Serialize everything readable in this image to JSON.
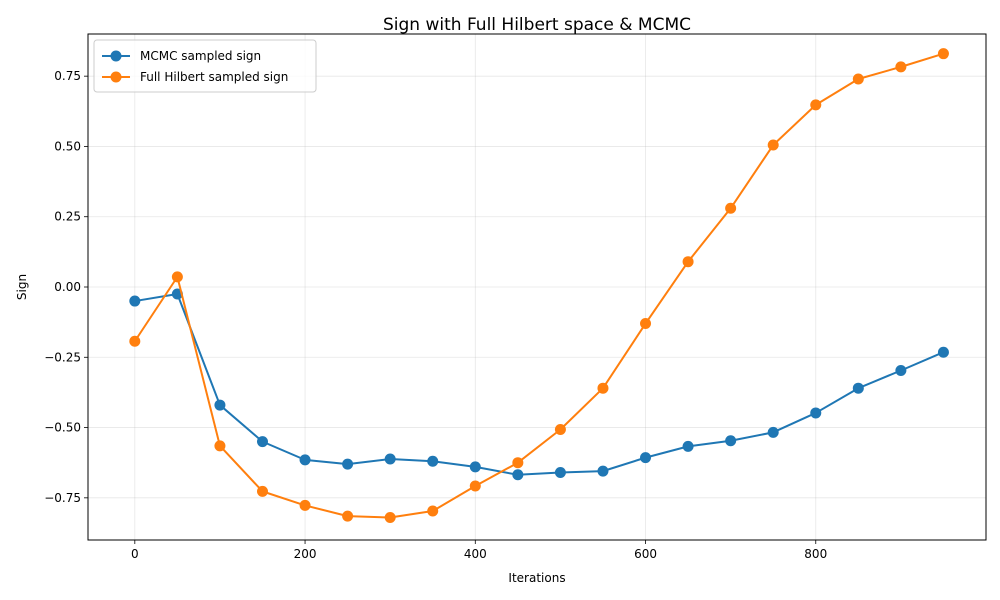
{
  "chart_data": {
    "type": "line",
    "title": "Sign with Full Hilbert space & MCMC",
    "xlabel": "Iterations",
    "ylabel": "Sign",
    "xlim": [
      -55,
      1000
    ],
    "ylim": [
      -0.9,
      0.9
    ],
    "xticks": [
      0,
      200,
      400,
      600,
      800
    ],
    "yticks": [
      -0.75,
      -0.5,
      -0.25,
      0.0,
      0.25,
      0.5,
      0.75
    ],
    "xtick_labels": [
      "0",
      "200",
      "400",
      "600",
      "800"
    ],
    "ytick_labels": [
      "−0.75",
      "−0.50",
      "−0.25",
      "0.00",
      "0.25",
      "0.50",
      "0.75"
    ],
    "grid": true,
    "legend_position": "top-left",
    "x": [
      0,
      50,
      100,
      150,
      200,
      250,
      300,
      350,
      400,
      450,
      500,
      550,
      600,
      650,
      700,
      750,
      800,
      850,
      900,
      950
    ],
    "series": [
      {
        "name": "MCMC sampled sign",
        "color": "#1f77b4",
        "values": [
          -0.05,
          -0.025,
          -0.42,
          -0.55,
          -0.615,
          -0.63,
          -0.612,
          -0.62,
          -0.64,
          -0.668,
          -0.66,
          -0.655,
          -0.607,
          -0.567,
          -0.547,
          -0.517,
          -0.448,
          -0.36,
          -0.297,
          -0.232
        ]
      },
      {
        "name": "Full Hilbert sampled sign",
        "color": "#ff7f0e",
        "values": [
          -0.193,
          0.036,
          -0.565,
          -0.727,
          -0.777,
          -0.815,
          -0.82,
          -0.797,
          -0.708,
          -0.625,
          -0.507,
          -0.36,
          -0.13,
          0.09,
          0.28,
          0.505,
          0.648,
          0.74,
          0.783,
          0.83
        ]
      }
    ]
  }
}
